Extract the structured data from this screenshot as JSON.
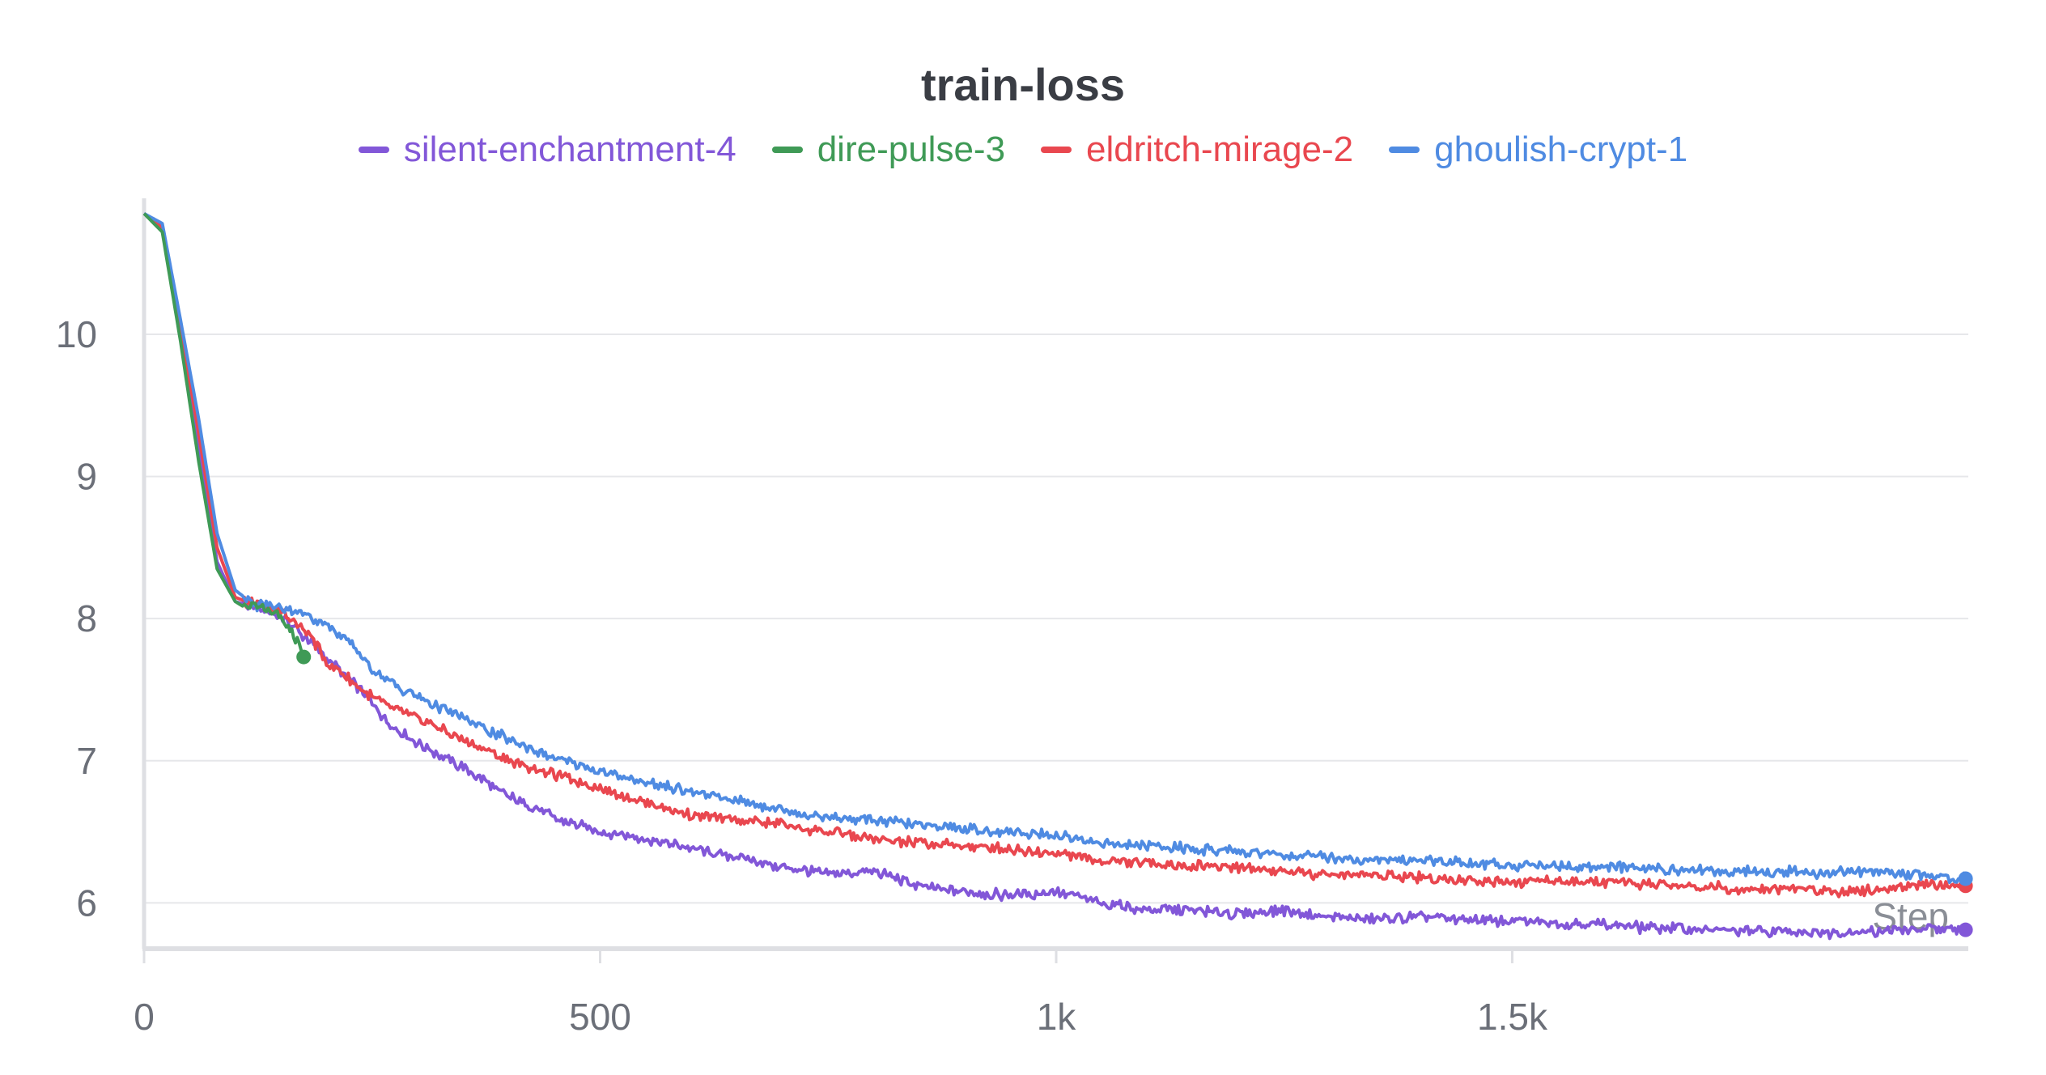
{
  "chart_data": {
    "type": "line",
    "title": "train-loss",
    "xlabel": "Step",
    "ylabel": "",
    "xlim": [
      0,
      2000
    ],
    "ylim": [
      5.7,
      10.9
    ],
    "x_ticks": [
      0,
      500,
      1000,
      1500
    ],
    "x_tick_labels": [
      "0",
      "500",
      "1k",
      "1.5k"
    ],
    "y_ticks": [
      6,
      7,
      8,
      9,
      10
    ],
    "y_tick_labels": [
      "6",
      "7",
      "8",
      "9",
      "10"
    ],
    "grid": true,
    "legend_position": "top",
    "series": [
      {
        "name": "silent-enchantment-4",
        "color": "#8257d8",
        "x": [
          0,
          20,
          40,
          60,
          80,
          100,
          120,
          150,
          180,
          200,
          230,
          250,
          270,
          300,
          350,
          400,
          450,
          500,
          550,
          600,
          650,
          700,
          750,
          800,
          850,
          900,
          950,
          1000,
          1050,
          1100,
          1150,
          1200,
          1250,
          1300,
          1350,
          1400,
          1450,
          1500,
          1550,
          1600,
          1650,
          1700,
          1750,
          1800,
          1850,
          1900,
          1950,
          1997
        ],
        "y": [
          10.85,
          10.75,
          10.0,
          9.2,
          8.4,
          8.12,
          8.08,
          8.02,
          7.85,
          7.72,
          7.55,
          7.4,
          7.25,
          7.12,
          6.95,
          6.75,
          6.6,
          6.5,
          6.45,
          6.38,
          6.32,
          6.25,
          6.2,
          6.22,
          6.12,
          6.08,
          6.05,
          6.08,
          6.0,
          5.95,
          5.95,
          5.92,
          5.95,
          5.9,
          5.88,
          5.9,
          5.88,
          5.87,
          5.86,
          5.85,
          5.82,
          5.82,
          5.8,
          5.8,
          5.79,
          5.8,
          5.81,
          5.81
        ]
      },
      {
        "name": "dire-pulse-3",
        "color": "#3f9a56",
        "x": [
          0,
          20,
          40,
          60,
          80,
          100,
          110,
          130,
          150,
          170,
          175
        ],
        "y": [
          10.85,
          10.72,
          9.95,
          9.1,
          8.35,
          8.12,
          8.08,
          8.08,
          8.0,
          7.82,
          7.73
        ]
      },
      {
        "name": "eldritch-mirage-2",
        "color": "#e9474f",
        "x": [
          0,
          20,
          40,
          60,
          80,
          100,
          120,
          150,
          180,
          200,
          230,
          250,
          270,
          300,
          350,
          400,
          450,
          500,
          550,
          600,
          650,
          700,
          750,
          800,
          850,
          900,
          950,
          1000,
          1050,
          1100,
          1150,
          1200,
          1250,
          1300,
          1350,
          1400,
          1450,
          1500,
          1550,
          1600,
          1650,
          1700,
          1750,
          1800,
          1850,
          1900,
          1950,
          1997
        ],
        "y": [
          10.85,
          10.75,
          10.05,
          9.3,
          8.5,
          8.15,
          8.1,
          8.05,
          7.9,
          7.7,
          7.55,
          7.45,
          7.38,
          7.3,
          7.15,
          7.0,
          6.9,
          6.8,
          6.7,
          6.62,
          6.58,
          6.55,
          6.5,
          6.45,
          6.42,
          6.4,
          6.38,
          6.35,
          6.3,
          6.28,
          6.26,
          6.25,
          6.22,
          6.2,
          6.2,
          6.18,
          6.16,
          6.15,
          6.15,
          6.14,
          6.13,
          6.12,
          6.1,
          6.1,
          6.08,
          6.1,
          6.12,
          6.12
        ]
      },
      {
        "name": "ghoulish-crypt-1",
        "color": "#4f8be2",
        "x": [
          0,
          20,
          40,
          60,
          80,
          100,
          120,
          150,
          180,
          200,
          230,
          250,
          270,
          300,
          350,
          400,
          450,
          500,
          550,
          600,
          650,
          700,
          750,
          800,
          850,
          900,
          950,
          1000,
          1050,
          1100,
          1150,
          1200,
          1250,
          1300,
          1350,
          1400,
          1450,
          1500,
          1550,
          1600,
          1650,
          1700,
          1750,
          1800,
          1850,
          1900,
          1950,
          1997
        ],
        "y": [
          10.85,
          10.78,
          10.1,
          9.4,
          8.6,
          8.2,
          8.1,
          8.08,
          8.02,
          7.95,
          7.8,
          7.65,
          7.55,
          7.45,
          7.3,
          7.15,
          7.02,
          6.92,
          6.85,
          6.78,
          6.72,
          6.65,
          6.6,
          6.58,
          6.55,
          6.52,
          6.5,
          6.48,
          6.42,
          6.4,
          6.38,
          6.36,
          6.34,
          6.32,
          6.3,
          6.3,
          6.28,
          6.27,
          6.26,
          6.25,
          6.24,
          6.23,
          6.22,
          6.22,
          6.21,
          6.22,
          6.2,
          6.17
        ]
      }
    ]
  }
}
